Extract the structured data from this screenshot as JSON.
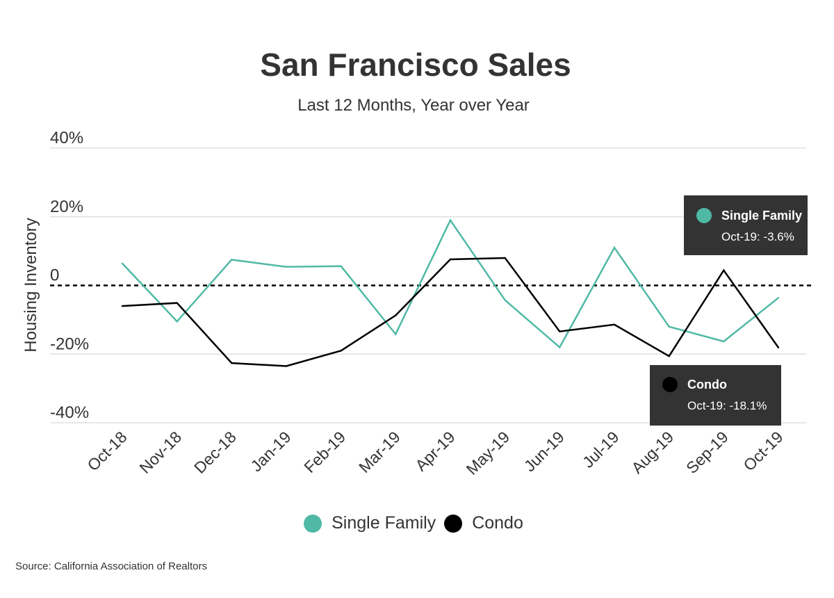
{
  "title": "San Francisco Sales",
  "subtitle": "Last 12 Months, Year over Year",
  "source": "Source:  California Association of Realtors",
  "colors": {
    "single_family": "#4fb9a5",
    "condo": "#000000",
    "callout_bg": "#333333",
    "grid": "#d9d9d9"
  },
  "legend": [
    {
      "label": "Single Family",
      "color": "#4fb9a5"
    },
    {
      "label": "Condo",
      "color": "#000000"
    }
  ],
  "callouts": {
    "single_family": {
      "label": "Single Family",
      "value": "Oct-19: -3.6%"
    },
    "condo": {
      "label": "Condo",
      "value": "Oct-19: -18.1%"
    }
  },
  "chart_data": {
    "type": "line",
    "title": "San Francisco Sales",
    "subtitle": "Last 12 Months, Year over Year",
    "ylabel": "Housing Inventory",
    "xlabel": "",
    "categories": [
      "Oct-18",
      "Nov-18",
      "Dec-18",
      "Jan-19",
      "Feb-19",
      "Mar-19",
      "Apr-19",
      "May-19",
      "Jun-19",
      "Jul-19",
      "Aug-19",
      "Sep-19",
      "Oct-19"
    ],
    "ylim": [
      -40,
      40
    ],
    "yticks": [
      {
        "value": 40,
        "label": "40%"
      },
      {
        "value": 20,
        "label": "20%"
      },
      {
        "value": 0,
        "label": "0"
      },
      {
        "value": -20,
        "label": "-20%"
      },
      {
        "value": -40,
        "label": "-40%"
      }
    ],
    "grid": true,
    "zero_line": "dashed",
    "legend_position": "bottom",
    "series": [
      {
        "name": "Single Family",
        "color": "#4fb9a5",
        "values": [
          6.4,
          -10.5,
          7.5,
          5.4,
          5.6,
          -14.2,
          19.0,
          -4.3,
          -18.0,
          11.0,
          -12.0,
          -16.3,
          -3.6
        ]
      },
      {
        "name": "Condo",
        "color": "#000000",
        "values": [
          -6.0,
          -5.1,
          -22.6,
          -23.5,
          -19.0,
          -8.7,
          7.6,
          8.0,
          -13.4,
          -11.4,
          -20.6,
          4.4,
          -18.1
        ]
      }
    ]
  }
}
